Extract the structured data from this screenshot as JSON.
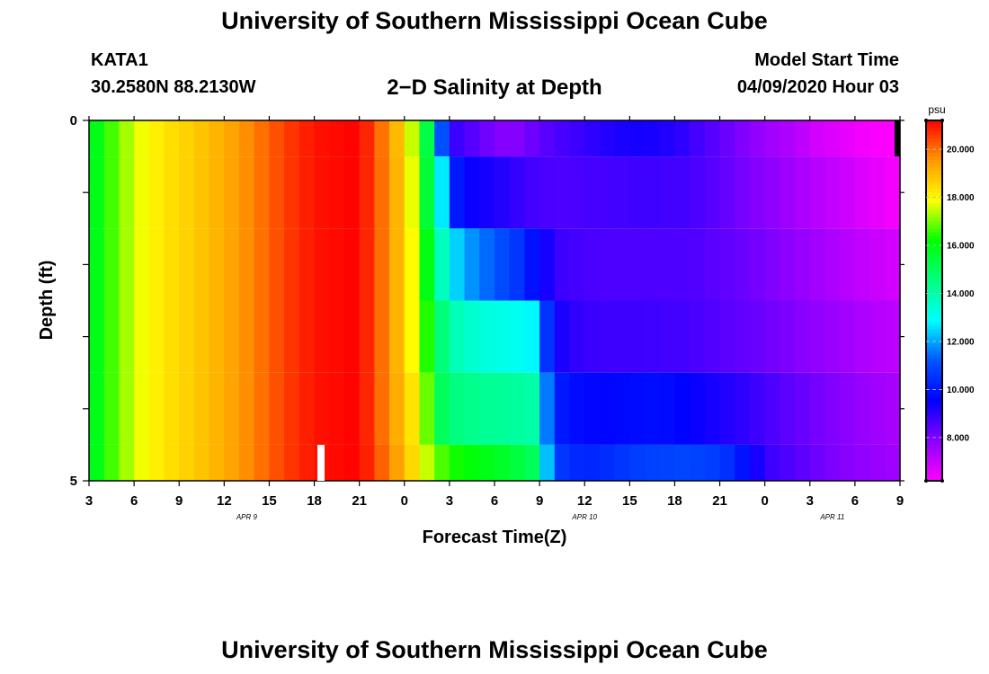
{
  "header": {
    "title": "University of Southern Mississippi Ocean Cube",
    "station": "KATA1",
    "coords": "30.2580N 88.2130W",
    "product": "2−D Salinity at Depth",
    "model_start_label": "Model Start Time",
    "model_start_value": "04/09/2020 Hour 03"
  },
  "footer": {
    "title": "University of Southern Mississippi Ocean Cube"
  },
  "chart_data": {
    "type": "heatmap",
    "title": "2−D Salinity at Depth",
    "xlabel": "Forecast Time(Z)",
    "ylabel": "Depth (ft)",
    "x_tick_labels": [
      "3",
      "6",
      "9",
      "12",
      "15",
      "18",
      "21",
      "0",
      "3",
      "6",
      "9",
      "12",
      "15",
      "18",
      "21",
      "0",
      "3",
      "6",
      "9"
    ],
    "x_tick_hours": [
      0,
      3,
      6,
      9,
      12,
      15,
      18,
      21,
      24,
      27,
      30,
      33,
      36,
      39,
      42,
      45,
      48,
      51,
      54
    ],
    "date_labels": [
      {
        "label": "APR  9",
        "hour": 10.5
      },
      {
        "label": "APR  10",
        "hour": 33
      },
      {
        "label": "APR  11",
        "hour": 49.5
      }
    ],
    "y_tick_labels": [
      "0",
      "5"
    ],
    "ylim": [
      0,
      5
    ],
    "xlim_hours": [
      0,
      54
    ],
    "colorbar": {
      "unit": "psu",
      "range": [
        6.2,
        21.2
      ],
      "tick_values": [
        8,
        10,
        12,
        14,
        16,
        18,
        20
      ],
      "tick_labels": [
        "8.000",
        "10.000",
        "12.000",
        "14.000",
        "16.000",
        "18.000",
        "20.000"
      ]
    },
    "layers": [
      {
        "depth_top": 0,
        "depth_bottom": 0.5,
        "profile": [
          [
            0,
            15.5
          ],
          [
            1,
            16.3
          ],
          [
            3,
            17.6
          ],
          [
            5,
            18.3
          ],
          [
            7,
            18.7
          ],
          [
            9,
            19.2
          ],
          [
            11,
            19.8
          ],
          [
            13,
            20.5
          ],
          [
            15,
            21.0
          ],
          [
            18,
            21.2
          ],
          [
            19,
            20.4
          ],
          [
            20,
            19.5
          ],
          [
            21,
            18.5
          ],
          [
            21.5,
            17.5
          ],
          [
            22,
            16.5
          ],
          [
            22.5,
            15.3
          ],
          [
            23,
            13.8
          ],
          [
            23.3,
            12.3
          ],
          [
            23.6,
            10.5
          ],
          [
            24,
            9.0
          ],
          [
            26,
            8.3
          ],
          [
            28,
            7.8
          ],
          [
            31,
            8.6
          ],
          [
            33,
            8.9
          ],
          [
            35,
            9.2
          ],
          [
            37,
            9.3
          ],
          [
            39,
            9.1
          ],
          [
            41,
            8.6
          ],
          [
            43,
            8.1
          ],
          [
            45,
            7.6
          ],
          [
            47,
            7.3
          ],
          [
            48,
            6.9
          ],
          [
            50,
            6.6
          ],
          [
            52,
            6.3
          ],
          [
            54,
            6.2
          ]
        ]
      },
      {
        "depth_top": 0.5,
        "depth_bottom": 1.5,
        "profile": [
          [
            0,
            15.5
          ],
          [
            1,
            16.3
          ],
          [
            3,
            17.6
          ],
          [
            5,
            18.3
          ],
          [
            7,
            18.7
          ],
          [
            9,
            19.2
          ],
          [
            11,
            19.8
          ],
          [
            13,
            20.5
          ],
          [
            15,
            21.0
          ],
          [
            18,
            21.2
          ],
          [
            19,
            20.4
          ],
          [
            20,
            19.6
          ],
          [
            21,
            18.6
          ],
          [
            21.7,
            17.4
          ],
          [
            22.2,
            16.2
          ],
          [
            22.7,
            15.0
          ],
          [
            23.2,
            13.8
          ],
          [
            23.6,
            12.3
          ],
          [
            24,
            11.3
          ],
          [
            24.4,
            10.1
          ],
          [
            25,
            9.5
          ],
          [
            27,
            9.2
          ],
          [
            29,
            8.8
          ],
          [
            31,
            8.6
          ],
          [
            34,
            8.7
          ],
          [
            37,
            8.8
          ],
          [
            40,
            8.7
          ],
          [
            42,
            8.4
          ],
          [
            44,
            8.0
          ],
          [
            46,
            7.7
          ],
          [
            48,
            7.3
          ],
          [
            50,
            7.0
          ],
          [
            52,
            6.6
          ],
          [
            54,
            6.3
          ]
        ]
      },
      {
        "depth_top": 1.5,
        "depth_bottom": 2.5,
        "profile": [
          [
            0,
            15.5
          ],
          [
            1,
            16.3
          ],
          [
            3,
            17.6
          ],
          [
            5,
            18.3
          ],
          [
            7,
            18.7
          ],
          [
            9,
            19.2
          ],
          [
            11,
            19.8
          ],
          [
            13,
            20.5
          ],
          [
            15,
            21.0
          ],
          [
            18,
            21.2
          ],
          [
            19,
            20.4
          ],
          [
            20,
            19.6
          ],
          [
            21,
            18.6
          ],
          [
            21.8,
            17.5
          ],
          [
            22.3,
            16.5
          ],
          [
            22.8,
            15.2
          ],
          [
            23.3,
            14.0
          ],
          [
            24,
            13.0
          ],
          [
            24.6,
            12.3
          ],
          [
            25.5,
            11.8
          ],
          [
            27,
            11.2
          ],
          [
            28.5,
            10.6
          ],
          [
            30,
            9.5
          ],
          [
            31.5,
            8.8
          ],
          [
            34,
            8.6
          ],
          [
            37,
            8.6
          ],
          [
            40,
            8.6
          ],
          [
            42,
            8.4
          ],
          [
            44,
            8.2
          ],
          [
            46,
            7.9
          ],
          [
            48,
            7.6
          ],
          [
            50,
            7.3
          ],
          [
            52,
            7.0
          ],
          [
            54,
            6.8
          ]
        ]
      },
      {
        "depth_top": 2.5,
        "depth_bottom": 3.5,
        "profile": [
          [
            0,
            15.5
          ],
          [
            1,
            16.3
          ],
          [
            3,
            17.6
          ],
          [
            5,
            18.3
          ],
          [
            7,
            18.7
          ],
          [
            9,
            19.2
          ],
          [
            11,
            19.8
          ],
          [
            13,
            20.5
          ],
          [
            15,
            21.0
          ],
          [
            18,
            21.2
          ],
          [
            19,
            20.4
          ],
          [
            20,
            19.6
          ],
          [
            21,
            18.6
          ],
          [
            21.8,
            17.5
          ],
          [
            22.5,
            16.4
          ],
          [
            23.2,
            15.0
          ],
          [
            24,
            14.0
          ],
          [
            25,
            13.6
          ],
          [
            27,
            13.2
          ],
          [
            29,
            13.0
          ],
          [
            29.8,
            12.7
          ],
          [
            30.3,
            11.0
          ],
          [
            31,
            9.4
          ],
          [
            32,
            9.0
          ],
          [
            34,
            8.8
          ],
          [
            37,
            8.8
          ],
          [
            40,
            8.7
          ],
          [
            42,
            8.5
          ],
          [
            44,
            8.3
          ],
          [
            46,
            8.1
          ],
          [
            48,
            7.8
          ],
          [
            50,
            7.6
          ],
          [
            52,
            7.3
          ],
          [
            54,
            7.1
          ]
        ]
      },
      {
        "depth_top": 3.5,
        "depth_bottom": 4.5,
        "profile": [
          [
            0,
            15.5
          ],
          [
            1,
            16.3
          ],
          [
            3,
            17.6
          ],
          [
            5,
            18.3
          ],
          [
            7,
            18.7
          ],
          [
            9,
            19.2
          ],
          [
            11,
            19.8
          ],
          [
            13,
            20.5
          ],
          [
            15,
            21.0
          ],
          [
            18,
            21.2
          ],
          [
            19,
            20.4
          ],
          [
            20,
            19.6
          ],
          [
            21,
            18.8
          ],
          [
            22,
            17.8
          ],
          [
            22.7,
            16.5
          ],
          [
            23.3,
            15.2
          ],
          [
            24,
            14.6
          ],
          [
            26,
            14.3
          ],
          [
            28,
            14.2
          ],
          [
            29.8,
            14.0
          ],
          [
            30.2,
            12.4
          ],
          [
            31,
            10.2
          ],
          [
            32,
            9.8
          ],
          [
            34,
            9.6
          ],
          [
            36,
            9.7
          ],
          [
            38,
            9.8
          ],
          [
            40,
            9.5
          ],
          [
            42,
            9.2
          ],
          [
            44,
            8.9
          ],
          [
            46,
            8.5
          ],
          [
            48,
            8.2
          ],
          [
            50,
            7.9
          ],
          [
            52,
            7.6
          ],
          [
            54,
            7.4
          ]
        ]
      },
      {
        "depth_top": 4.5,
        "depth_bottom": 5,
        "profile": [
          [
            0,
            15.5
          ],
          [
            1,
            16.3
          ],
          [
            3,
            17.6
          ],
          [
            5,
            18.3
          ],
          [
            7,
            18.7
          ],
          [
            9,
            19.2
          ],
          [
            11,
            19.8
          ],
          [
            13,
            20.5
          ],
          [
            15,
            21.0
          ],
          [
            18,
            21.2
          ],
          [
            19,
            20.5
          ],
          [
            20,
            19.8
          ],
          [
            21,
            19.0
          ],
          [
            22,
            18.0
          ],
          [
            23,
            17.0
          ],
          [
            24,
            16.4
          ],
          [
            26,
            16.0
          ],
          [
            28,
            15.6
          ],
          [
            29.6,
            15.0
          ],
          [
            30.2,
            13.0
          ],
          [
            30.8,
            11.5
          ],
          [
            31.5,
            10.6
          ],
          [
            33,
            10.2
          ],
          [
            35,
            10.5
          ],
          [
            37,
            10.8
          ],
          [
            40,
            10.9
          ],
          [
            42,
            10.7
          ],
          [
            43,
            10.2
          ],
          [
            44,
            9.6
          ],
          [
            45,
            8.9
          ],
          [
            47,
            8.5
          ],
          [
            49,
            8.1
          ],
          [
            51,
            7.8
          ],
          [
            54,
            7.5
          ]
        ]
      }
    ],
    "colors": {
      "scale": [
        "#ff00ff",
        "#8a00ff",
        "#0000ff",
        "#0055ff",
        "#00ffff",
        "#00ff80",
        "#00ff00",
        "#ffff00",
        "#ff9900",
        "#ff0000"
      ]
    }
  }
}
